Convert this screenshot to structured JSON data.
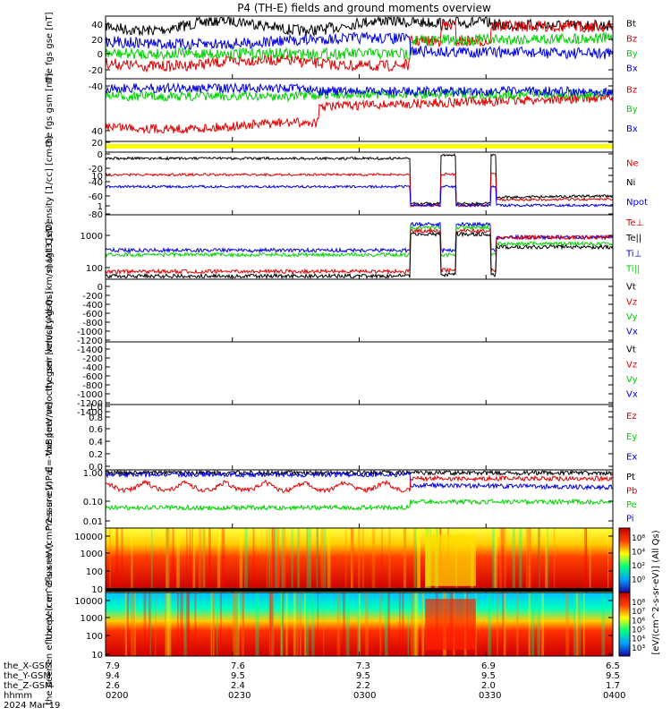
{
  "title": "P4 (TH-E) fields and ground moments overview",
  "colors": {
    "black": "#000000",
    "red": "#e00000",
    "green": "#00d000",
    "blue": "#0000e0",
    "yellow": "#ffff00"
  },
  "footer": {
    "rows": [
      {
        "label": "the_X-GSM",
        "values": [
          "7.9",
          "7.6",
          "7.3",
          "6.9",
          "6.5"
        ]
      },
      {
        "label": "the_Y-GSM",
        "values": [
          "9.4",
          "9.5",
          "9.5",
          "9.5",
          "9.5"
        ]
      },
      {
        "label": "the_Z-GSM",
        "values": [
          "2.6",
          "2.4",
          "2.2",
          "2.0",
          "1.7"
        ]
      },
      {
        "label": "hhmm",
        "values": [
          "0200",
          "0230",
          "0300",
          "0330",
          "0400"
        ]
      }
    ],
    "date": "2024 Mar 19"
  },
  "chart_data": [
    {
      "type": "line",
      "ylabel": "the fgs gse [nT]",
      "ylim": [
        -50,
        60
      ],
      "yticks": [
        "-40",
        "-20",
        "0",
        "20",
        "40"
      ],
      "legend": [
        "Bt",
        "Bz",
        "By",
        "Bx"
      ],
      "series_colors": [
        "black",
        "red",
        "green",
        "blue"
      ]
    },
    {
      "type": "line",
      "ylabel": "the fgs gsm [nT]",
      "ylim": [
        -100,
        45
      ],
      "yticks": [
        "-80",
        "-60",
        "-40",
        "-20",
        "0",
        "20",
        "40"
      ],
      "legend": [
        "Bz",
        "By",
        "Bx"
      ],
      "series_colors": [
        "red",
        "green",
        "blue"
      ]
    },
    {
      "type": "area",
      "ylabel": "",
      "ylim": [
        0,
        1
      ],
      "yticks": [],
      "legend": [],
      "series_colors": [
        "yellow"
      ]
    },
    {
      "type": "line",
      "ylabel": "Density [1/cc] [cm-3]",
      "scale": "log",
      "ylim": [
        0.5,
        40
      ],
      "yticks": [
        "1",
        "10"
      ],
      "legend": [
        "Ne",
        "Ni",
        "Npot"
      ],
      "series_colors": [
        "red",
        "black",
        "blue"
      ]
    },
    {
      "type": "line",
      "ylabel": "magt3 [eV]",
      "scale": "log",
      "ylim": [
        15,
        3000
      ],
      "yticks": [
        "100",
        "1000"
      ],
      "legend": [
        "Te⊥",
        "Te||",
        "Ti⊥",
        "Ti||"
      ],
      "series_colors": [
        "red",
        "black",
        "blue",
        "green"
      ]
    },
    {
      "type": "line",
      "ylabel": "the peir velocity gsm [km/s] (All Qs)",
      "ylim": [
        -1450,
        60
      ],
      "yticks": [
        "0",
        "-200",
        "-400",
        "-600",
        "-800",
        "-1000",
        "-1200",
        "-1400"
      ],
      "legend": [
        "Vt",
        "Vz",
        "Vy",
        "Vx"
      ],
      "series_colors": [
        "black",
        "red",
        "green",
        "blue"
      ]
    },
    {
      "type": "line",
      "ylabel": "the peer velocity gsm [km/s] (All Qs)",
      "ylim": [
        -1450,
        60
      ],
      "yticks": [
        "0",
        "-200",
        "-400",
        "-600",
        "-800",
        "-1000",
        "-1200",
        "-1400"
      ],
      "legend": [
        "Vt",
        "Vz",
        "Vy",
        "Vx"
      ],
      "series_colors": [
        "black",
        "red",
        "green",
        "blue"
      ]
    },
    {
      "type": "line",
      "ylabel": "E=-VxB [mV/m]",
      "ylim": [
        -0.05,
        1.0
      ],
      "yticks": [
        "0.0",
        "0.2",
        "0.4",
        "0.6",
        "0.8",
        "1.0"
      ],
      "legend": [
        "Ez",
        "Ey",
        "Ex"
      ],
      "series_colors": [
        "red",
        "green",
        "blue"
      ]
    },
    {
      "type": "line",
      "ylabel": "Pressure [nPa]",
      "scale": "log",
      "ylim": [
        0.006,
        1.6
      ],
      "yticks": [
        "0.01",
        "0.10",
        "1.00"
      ],
      "legend": [
        "Pt",
        "Pb",
        "Pe",
        "Pi"
      ],
      "series_colors": [
        "black",
        "red",
        "green",
        "blue"
      ]
    },
    {
      "type": "heatmap",
      "ylabel": "the peir en eflux eV (cm^2-s-sr-eV)",
      "scale": "log",
      "ylim": [
        6,
        20000
      ],
      "yticks": [
        "10",
        "100",
        "1000",
        "10000"
      ]
    },
    {
      "type": "heatmap",
      "ylabel": "the peer en eflux eV (cm^2-s-sr-eV)",
      "scale": "log",
      "ylim": [
        6,
        20000
      ],
      "yticks": [
        "10",
        "100",
        "1000",
        "10000"
      ]
    }
  ],
  "colorbar": {
    "label": "[eV/(cm^2-s-sr-eV)] (All Qs)",
    "ticks_top": [
      "10⁸",
      "10⁴",
      "10²",
      "10⁰"
    ],
    "ticks_bottom": [
      "10⁸",
      "10⁷",
      "10⁶",
      "10⁵",
      "10⁴",
      "10³"
    ]
  }
}
